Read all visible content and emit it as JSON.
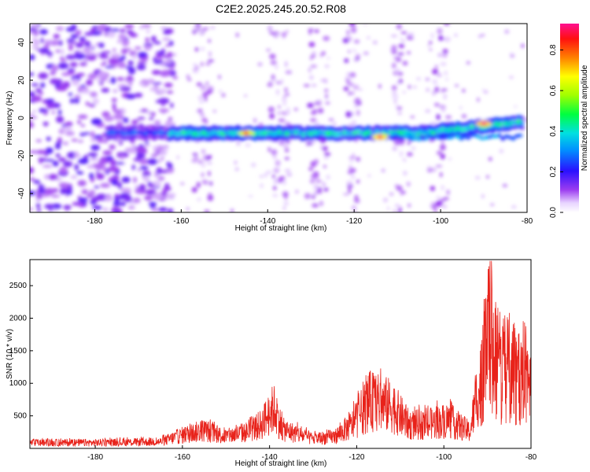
{
  "title": "C2E2.2025.245.20.52.R08",
  "colors": {
    "snr_line": "#e8221a",
    "axis": "#000000",
    "background": "#ffffff"
  },
  "chart_data": [
    {
      "type": "heatmap",
      "xlabel": "Height of straight line (km)",
      "ylabel": "Frequency (Hz)",
      "xlim": [
        -195,
        -80
      ],
      "ylim": [
        -50,
        50
      ],
      "xticks": [
        -180,
        -160,
        -140,
        -120,
        -100,
        -80
      ],
      "yticks": [
        -40,
        -20,
        0,
        20,
        40
      ],
      "colorbar": {
        "label": "Normalized spectral amplitude",
        "range": [
          0.0,
          0.93
        ],
        "ticks": [
          0.0,
          0.2,
          0.4,
          0.6,
          0.8
        ]
      },
      "description": [
        {
          "x_range": [
            -195,
            -162
          ],
          "freq_range": [
            -50,
            50
          ],
          "amplitude": "0.05-0.15 scattered noise"
        },
        {
          "x_range": [
            -175,
            -80
          ],
          "freq_center": -8,
          "amplitude": "0.3-0.5 horizontal band"
        },
        {
          "x": -145,
          "freq": -8,
          "amplitude": 0.85
        },
        {
          "x": -114,
          "freq": -10,
          "amplitude": 0.9
        },
        {
          "x": -90,
          "freq": -3,
          "amplitude": 0.93
        }
      ]
    },
    {
      "type": "line",
      "xlabel": "Height of straight line (km)",
      "ylabel": "SNR (10 * v/v)",
      "xlim": [
        -195,
        -80
      ],
      "ylim": [
        0,
        2900
      ],
      "xticks": [
        -180,
        -160,
        -140,
        -120,
        -100,
        -80
      ],
      "yticks": [
        500,
        1000,
        1500,
        2000,
        2500
      ],
      "envelope": [
        {
          "x": -195,
          "level": 120
        },
        {
          "x": -180,
          "level": 120
        },
        {
          "x": -165,
          "level": 140
        },
        {
          "x": -160,
          "level": 280
        },
        {
          "x": -155,
          "level": 380
        },
        {
          "x": -150,
          "level": 250
        },
        {
          "x": -145,
          "level": 350
        },
        {
          "x": -142,
          "level": 500
        },
        {
          "x": -139,
          "level": 850
        },
        {
          "x": -137,
          "level": 400
        },
        {
          "x": -130,
          "level": 200
        },
        {
          "x": -125,
          "level": 250
        },
        {
          "x": -121,
          "level": 500
        },
        {
          "x": -117,
          "level": 1000
        },
        {
          "x": -112,
          "level": 900
        },
        {
          "x": -108,
          "level": 500
        },
        {
          "x": -104,
          "level": 500
        },
        {
          "x": -99,
          "level": 600
        },
        {
          "x": -94,
          "level": 350
        },
        {
          "x": -91,
          "level": 1800
        },
        {
          "x": -89.5,
          "level": 2700
        },
        {
          "x": -87,
          "level": 1700
        },
        {
          "x": -84,
          "level": 1800
        },
        {
          "x": -81,
          "level": 1600
        },
        {
          "x": -80,
          "level": 1200
        }
      ]
    }
  ]
}
